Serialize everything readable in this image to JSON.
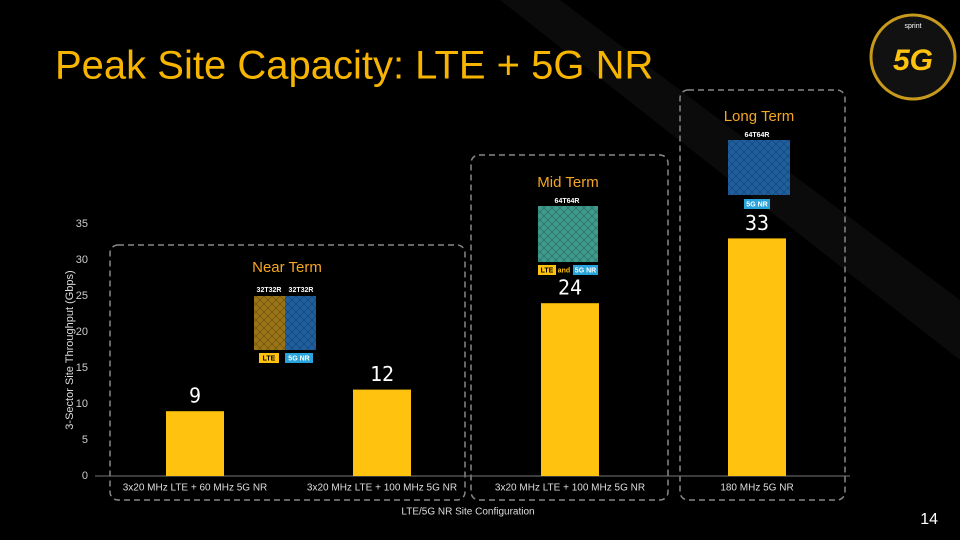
{
  "chart_data": {
    "type": "bar",
    "title": "Peak Site Capacity: LTE + 5G NR",
    "categories": [
      "3x20 MHz LTE + 60 MHz 5G NR",
      "3x20 MHz LTE + 100 MHz 5G NR",
      "3x20 MHz LTE + 100 MHz 5G NR",
      "180 MHz 5G NR"
    ],
    "values": [
      9,
      12,
      24,
      33
    ],
    "color": "#ffc20e",
    "ylim": [
      0,
      35
    ],
    "yticks": [
      0,
      5,
      10,
      15,
      20,
      25,
      30,
      35
    ],
    "grid": false,
    "x_label": "LTE/5G NR Site Configuration",
    "y_label": "3-Sector Site Throughput (Gbps)",
    "annotations": [
      {
        "label": "Near Term",
        "antennas": [
          "32T32R",
          "32T32R"
        ],
        "tags": [
          "LTE",
          "5G NR"
        ]
      },
      {
        "label": "Mid Term",
        "antennas": [
          "64T64R"
        ],
        "tags": [
          "LTE",
          "and",
          "5G NR"
        ]
      },
      {
        "label": "Long Term",
        "antennas": [
          "64T64R"
        ],
        "tags": [
          "5G NR"
        ]
      }
    ]
  },
  "page_number": "14",
  "logo": {
    "brand": "sprint",
    "mark": "5G"
  }
}
